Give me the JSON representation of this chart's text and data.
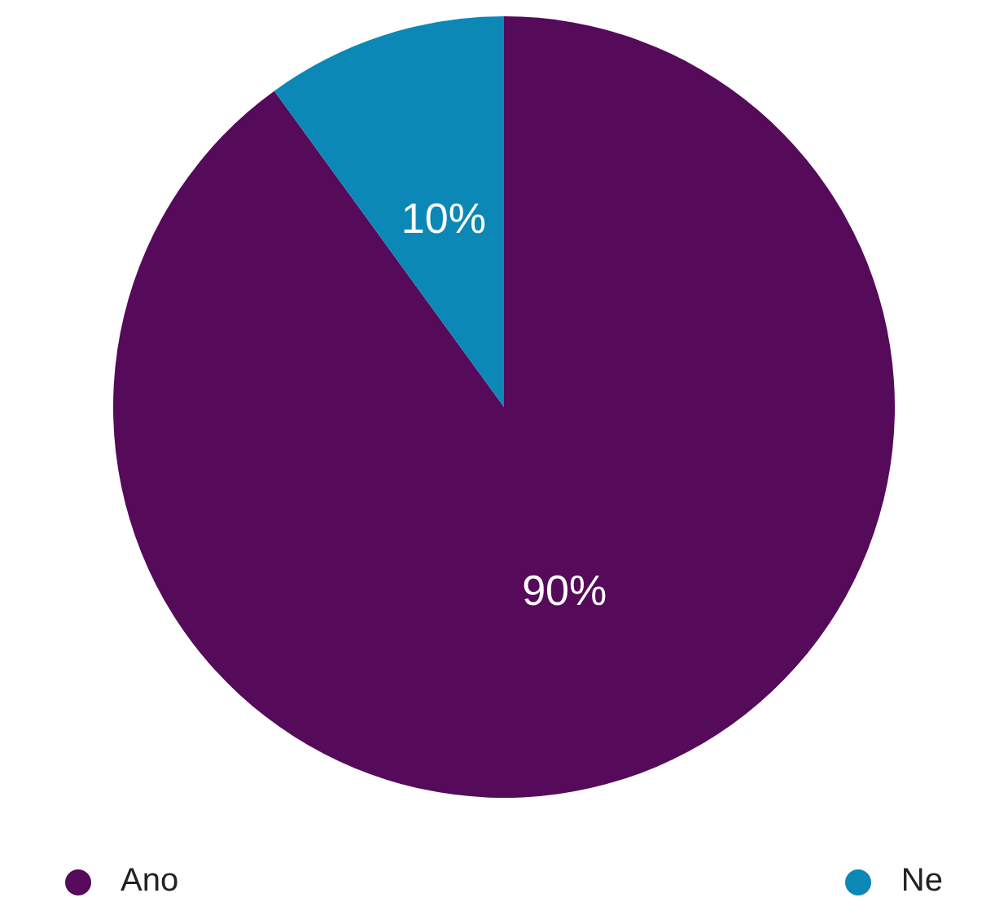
{
  "chart_data": {
    "type": "pie",
    "categories": [
      "Ano",
      "Ne"
    ],
    "values": [
      90,
      10
    ],
    "colors": [
      "#560a5a",
      "#0b88b6"
    ],
    "value_labels": [
      "90%",
      "10%"
    ],
    "legend": "bottom"
  }
}
